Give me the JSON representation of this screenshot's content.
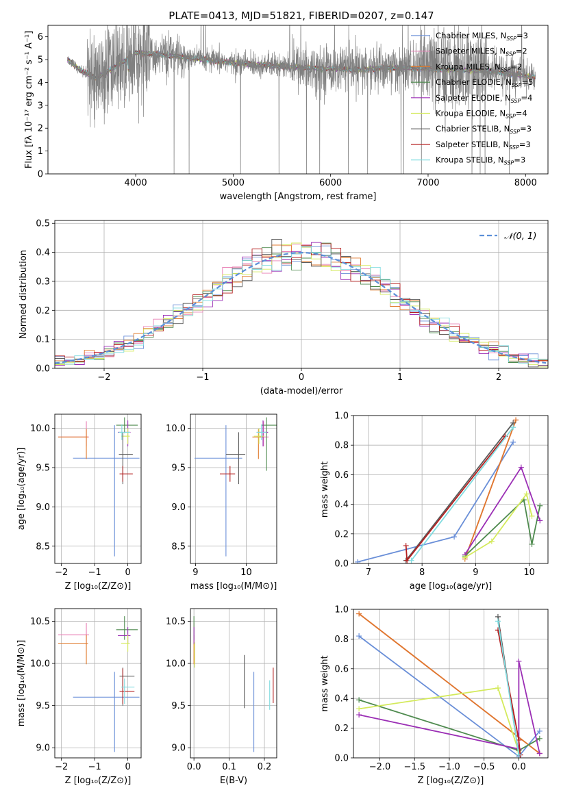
{
  "figure_title": "PLATE=0413, MJD=51821, FIBERID=0207, z=0.147",
  "colors": {
    "models": [
      "#6a8fd8",
      "#e87fb5",
      "#e07a2c",
      "#4e8a4e",
      "#9b2fb5",
      "#d4ea5c",
      "#5a5a5a",
      "#b51f1f",
      "#80dce0"
    ],
    "data": "#808080",
    "normal": "#5b8fd8"
  },
  "chart_data": [
    {
      "type": "line",
      "id": "spectrum",
      "title": "PLATE=0413, MJD=51821, FIBERID=0207, z=0.147",
      "xlabel": "wavelength [Angstrom, rest frame]",
      "ylabel": "Flux [fλ 10⁻¹⁷ erg cm⁻² s⁻¹ A⁻¹]",
      "xlim": [
        3100,
        8230
      ],
      "ylim": [
        0,
        6.5
      ],
      "xticks": [
        4000,
        5000,
        6000,
        7000,
        8000
      ],
      "yticks": [
        0,
        1,
        2,
        3,
        4,
        5,
        6
      ],
      "grid": false,
      "legend_position": "top-right",
      "continuum_knots": [
        [
          3300,
          5.0
        ],
        [
          3450,
          4.5
        ],
        [
          3600,
          4.2
        ],
        [
          3800,
          4.7
        ],
        [
          4000,
          5.3
        ],
        [
          4300,
          5.2
        ],
        [
          4600,
          5.05
        ],
        [
          5000,
          4.85
        ],
        [
          5500,
          4.7
        ],
        [
          6000,
          4.6
        ],
        [
          6300,
          4.55
        ],
        [
          6600,
          4.65
        ],
        [
          7000,
          4.6
        ],
        [
          7300,
          4.55
        ],
        [
          7600,
          4.5
        ],
        [
          8000,
          4.3
        ],
        [
          8100,
          4.25
        ]
      ],
      "legend": [
        {
          "label": "Chabrier MILES, N",
          "sub": "SSP",
          "suffix": "=3"
        },
        {
          "label": "Salpeter MILES, N",
          "sub": "SSP",
          "suffix": "=2"
        },
        {
          "label": "Kroupa MILES, N",
          "sub": "SSP",
          "suffix": "=2"
        },
        {
          "label": "Chabrier ELODIE, N",
          "sub": "SSP",
          "suffix": "=5"
        },
        {
          "label": "Salpeter ELODIE, N",
          "sub": "SSP",
          "suffix": "=4"
        },
        {
          "label": "Kroupa ELODIE, N",
          "sub": "SSP",
          "suffix": "=4"
        },
        {
          "label": "Chabrier STELIB, N",
          "sub": "SSP",
          "suffix": "=3"
        },
        {
          "label": "Salpeter STELIB, N",
          "sub": "SSP",
          "suffix": "=3"
        },
        {
          "label": "Kroupa STELIB, N",
          "sub": "SSP",
          "suffix": "=3"
        }
      ]
    },
    {
      "type": "histogram",
      "id": "residuals",
      "xlabel": "(data-model)/error",
      "ylabel": "Normed distribution",
      "xlim": [
        -2.5,
        2.5
      ],
      "ylim": [
        0,
        0.51
      ],
      "xticks": [
        -2,
        -1,
        0,
        1,
        2
      ],
      "yticks": [
        0,
        0.1,
        0.2,
        0.3,
        0.4,
        0.5
      ],
      "bin_width": 0.1,
      "grid": true,
      "legend": [
        {
          "label": "𝒩(0, 1)"
        }
      ],
      "legend_position": "top-right",
      "normal": {
        "mean": 0,
        "sigma": 1
      }
    },
    {
      "type": "errorbar",
      "id": "age-vs-metallicity",
      "xlabel": "Z [log₁₀(Z/Z⊙)]",
      "ylabel": "age  [log₁₀(age/yr)]",
      "xlim": [
        -2.2,
        0.4
      ],
      "ylim": [
        8.28,
        10.18
      ],
      "xticks": [
        -2,
        -1,
        0
      ],
      "yticks": [
        8.5,
        9.0,
        9.5,
        10.0
      ],
      "grid": true,
      "points": [
        {
          "x": -0.4,
          "xerr": [
            1.25,
            0.75
          ],
          "y": 9.62,
          "yerr": [
            1.25,
            0.42
          ]
        },
        {
          "x": -1.25,
          "xerr": [
            0.85,
            0.08
          ],
          "y": 9.89,
          "yerr": [
            0.12,
            0.2
          ]
        },
        {
          "x": -1.25,
          "xerr": [
            0.85,
            0.05
          ],
          "y": 9.89,
          "yerr": [
            0.28,
            0.1
          ]
        },
        {
          "x": -0.1,
          "xerr": [
            0.25,
            0.4
          ],
          "y": 10.04,
          "yerr": [
            0.1,
            0.1
          ]
        },
        {
          "x": 0.0,
          "xerr": [
            0.3,
            0.08
          ],
          "y": 9.95,
          "yerr": [
            0.18,
            0.15
          ]
        },
        {
          "x": 0.0,
          "xerr": [
            0.2,
            0.06
          ],
          "y": 9.9,
          "yerr": [
            0.1,
            0.1
          ]
        },
        {
          "x": -0.15,
          "xerr": [
            0.12,
            0.3
          ],
          "y": 9.67,
          "yerr": [
            0.38,
            0.28
          ]
        },
        {
          "x": -0.15,
          "xerr": [
            0.1,
            0.3
          ],
          "y": 9.42,
          "yerr": [
            0.1,
            0.1
          ]
        },
        {
          "x": -0.18,
          "xerr": [
            0.1,
            0.25
          ],
          "y": 9.95,
          "yerr": [
            0.1,
            0.1
          ]
        }
      ]
    },
    {
      "type": "errorbar",
      "id": "age-vs-mass",
      "xlabel": "mass [log₁₀(M/M⊙)]",
      "ylabel": "",
      "xlim": [
        8.9,
        10.6
      ],
      "ylim": [
        8.28,
        10.18
      ],
      "xticks": [
        9,
        10
      ],
      "yticks": [
        8.5,
        9.0,
        9.5,
        10.0
      ],
      "grid": true,
      "points": [
        {
          "x": 9.6,
          "xerr": [
            0.62,
            0.32
          ],
          "y": 9.62,
          "yerr": [
            1.25,
            0.42
          ]
        },
        {
          "x": 10.34,
          "xerr": [
            0.12,
            0.1
          ],
          "y": 9.89,
          "yerr": [
            0.12,
            0.2
          ]
        },
        {
          "x": 10.24,
          "xerr": [
            0.12,
            0.1
          ],
          "y": 9.89,
          "yerr": [
            0.28,
            0.1
          ]
        },
        {
          "x": 10.4,
          "xerr": [
            0.1,
            0.3
          ],
          "y": 10.04,
          "yerr": [
            0.58,
            0.1
          ]
        },
        {
          "x": 10.33,
          "xerr": [
            0.1,
            0.1
          ],
          "y": 9.95,
          "yerr": [
            0.18,
            0.15
          ]
        },
        {
          "x": 10.25,
          "xerr": [
            0.1,
            0.1
          ],
          "y": 9.9,
          "yerr": [
            0.1,
            0.1
          ]
        },
        {
          "x": 9.85,
          "xerr": [
            0.25,
            0.13
          ],
          "y": 9.67,
          "yerr": [
            0.38,
            0.28
          ]
        },
        {
          "x": 9.68,
          "xerr": [
            0.2,
            0.1
          ],
          "y": 9.42,
          "yerr": [
            0.1,
            0.1
          ]
        },
        {
          "x": 10.3,
          "xerr": [
            0.1,
            0.1
          ],
          "y": 9.95,
          "yerr": [
            0.1,
            0.1
          ]
        }
      ]
    },
    {
      "type": "line",
      "id": "mass-weight-vs-age",
      "xlabel": "age  [log₁₀(age/yr)]",
      "ylabel": "mass weight",
      "xlim": [
        6.72,
        10.35
      ],
      "ylim": [
        0,
        1.0
      ],
      "xticks": [
        7,
        8,
        9,
        10
      ],
      "yticks": [
        0,
        0.2,
        0.4,
        0.6,
        0.8,
        1.0
      ],
      "grid": true,
      "series": [
        {
          "values": [
            [
              6.8,
              0.01
            ],
            [
              8.6,
              0.18
            ],
            [
              9.7,
              0.82
            ]
          ]
        },
        {
          "values": [
            [
              8.8,
              0.03
            ],
            [
              9.75,
              0.97
            ]
          ]
        },
        {
          "values": [
            [
              8.8,
              0.03
            ],
            [
              9.75,
              0.97
            ]
          ]
        },
        {
          "values": [
            [
              8.8,
              0.05
            ],
            [
              9.9,
              0.43
            ],
            [
              10.05,
              0.13
            ],
            [
              10.2,
              0.39
            ]
          ]
        },
        {
          "values": [
            [
              8.8,
              0.06
            ],
            [
              9.85,
              0.65
            ],
            [
              10.2,
              0.29
            ]
          ]
        },
        {
          "values": [
            [
              8.8,
              0.04
            ],
            [
              9.3,
              0.15
            ],
            [
              9.95,
              0.47
            ],
            [
              10.05,
              0.32
            ]
          ]
        },
        {
          "values": [
            [
              7.7,
              0.02
            ],
            [
              9.7,
              0.95
            ]
          ]
        },
        {
          "values": [
            [
              7.7,
              0.12
            ],
            [
              7.72,
              0.02
            ],
            [
              9.55,
              0.86
            ]
          ]
        },
        {
          "values": [
            [
              7.8,
              0.02
            ],
            [
              9.7,
              0.92
            ]
          ]
        }
      ]
    },
    {
      "type": "errorbar",
      "id": "mass-vs-metallicity",
      "xlabel": "Z [log₁₀(Z/Z⊙)]",
      "ylabel": "mass [log₁₀(M/M⊙)]",
      "xlim": [
        -2.2,
        0.4
      ],
      "ylim": [
        8.88,
        10.65
      ],
      "xticks": [
        -2,
        -1,
        0
      ],
      "yticks": [
        9.0,
        9.5,
        10.0,
        10.5
      ],
      "grid": true,
      "points": [
        {
          "x": -0.4,
          "xerr": [
            1.25,
            0.75
          ],
          "y": 9.6,
          "yerr": [
            0.65,
            0.3
          ]
        },
        {
          "x": -1.25,
          "xerr": [
            0.85,
            0.08
          ],
          "y": 10.34,
          "yerr": [
            0.12,
            0.14
          ]
        },
        {
          "x": -1.25,
          "xerr": [
            0.85,
            0.05
          ],
          "y": 10.24,
          "yerr": [
            0.25,
            0.1
          ]
        },
        {
          "x": -0.1,
          "xerr": [
            0.25,
            0.4
          ],
          "y": 10.4,
          "yerr": [
            0.12,
            0.16
          ]
        },
        {
          "x": 0.0,
          "xerr": [
            0.3,
            0.08
          ],
          "y": 10.33,
          "yerr": [
            0.1,
            0.1
          ]
        },
        {
          "x": 0.0,
          "xerr": [
            0.2,
            0.06
          ],
          "y": 10.24,
          "yerr": [
            0.1,
            0.1
          ]
        },
        {
          "x": -0.15,
          "xerr": [
            0.1,
            0.35
          ],
          "y": 9.85,
          "yerr": [
            0.35,
            0.1
          ]
        },
        {
          "x": -0.15,
          "xerr": [
            0.1,
            0.35
          ],
          "y": 9.67,
          "yerr": [
            0.15,
            0.27
          ]
        },
        {
          "x": -0.1,
          "xerr": [
            0.1,
            0.3
          ],
          "y": 9.72,
          "yerr": [
            0.2,
            0.1
          ]
        }
      ]
    },
    {
      "type": "errorbar",
      "id": "mass-vs-ebv",
      "xlabel": "E(B-V)",
      "ylabel": "",
      "xlim": [
        -0.01,
        0.235
      ],
      "ylim": [
        8.88,
        10.65
      ],
      "xticks": [
        0.0,
        0.1,
        0.2
      ],
      "yticks": [
        9.0,
        9.5,
        10.0,
        10.5
      ],
      "grid": true,
      "points": [
        {
          "x": 0.17,
          "xerr": [
            0,
            0
          ],
          "y": 9.6,
          "yerr": [
            0.65,
            0.3
          ]
        },
        {
          "x": 0.0,
          "xerr": [
            0,
            0
          ],
          "y": 10.34,
          "yerr": [
            0.12,
            0.14
          ]
        },
        {
          "x": 0.0,
          "xerr": [
            0,
            0
          ],
          "y": 10.24,
          "yerr": [
            0.25,
            0.1
          ]
        },
        {
          "x": 0.0,
          "xerr": [
            0,
            0
          ],
          "y": 10.4,
          "yerr": [
            0.12,
            0.16
          ]
        },
        {
          "x": 0.0,
          "xerr": [
            0,
            0
          ],
          "y": 10.33,
          "yerr": [
            0.1,
            0.1
          ]
        },
        {
          "x": 0.002,
          "xerr": [
            0,
            0
          ],
          "y": 10.15,
          "yerr": [
            0.2,
            0.1
          ]
        },
        {
          "x": 0.143,
          "xerr": [
            0,
            0
          ],
          "y": 9.8,
          "yerr": [
            0.33,
            0.3
          ]
        },
        {
          "x": 0.225,
          "xerr": [
            0,
            0
          ],
          "y": 9.73,
          "yerr": [
            0.2,
            0.22
          ]
        },
        {
          "x": 0.215,
          "xerr": [
            0,
            0
          ],
          "y": 9.7,
          "yerr": [
            0.25,
            0.1
          ]
        }
      ]
    },
    {
      "type": "line",
      "id": "mass-weight-vs-metallicity",
      "xlabel": "Z [log₁₀(Z/Z⊙)]",
      "ylabel": "mass weight",
      "xlim": [
        -2.38,
        0.42
      ],
      "ylim": [
        0,
        1.0
      ],
      "xticks": [
        -2.0,
        -1.5,
        -1.0,
        -0.5,
        0.0
      ],
      "yticks": [
        0,
        0.2,
        0.4,
        0.6,
        0.8,
        1.0
      ],
      "grid": true,
      "series": [
        {
          "values": [
            [
              -2.3,
              0.82
            ],
            [
              0.0,
              0.01
            ],
            [
              0.3,
              0.18
            ]
          ]
        },
        {
          "values": [
            [
              -2.3,
              0.97
            ],
            [
              0.3,
              0.03
            ]
          ]
        },
        {
          "values": [
            [
              -2.3,
              0.97
            ],
            [
              0.3,
              0.03
            ]
          ]
        },
        {
          "values": [
            [
              -2.3,
              0.39
            ],
            [
              0.0,
              0.05
            ],
            [
              0.3,
              0.13
            ]
          ]
        },
        {
          "values": [
            [
              -2.3,
              0.29
            ],
            [
              0.0,
              0.06
            ],
            [
              0.0,
              0.65
            ],
            [
              0.3,
              0.03
            ]
          ]
        },
        {
          "values": [
            [
              -2.3,
              0.33
            ],
            [
              -0.3,
              0.47
            ],
            [
              0.0,
              0.04
            ]
          ]
        },
        {
          "values": [
            [
              -0.3,
              0.95
            ],
            [
              0.0,
              0.02
            ]
          ]
        },
        {
          "values": [
            [
              -0.3,
              0.86
            ],
            [
              0.0,
              0.12
            ],
            [
              0.02,
              0.02
            ]
          ]
        },
        {
          "values": [
            [
              -0.3,
              0.92
            ],
            [
              0.0,
              0.02
            ]
          ]
        }
      ]
    }
  ]
}
